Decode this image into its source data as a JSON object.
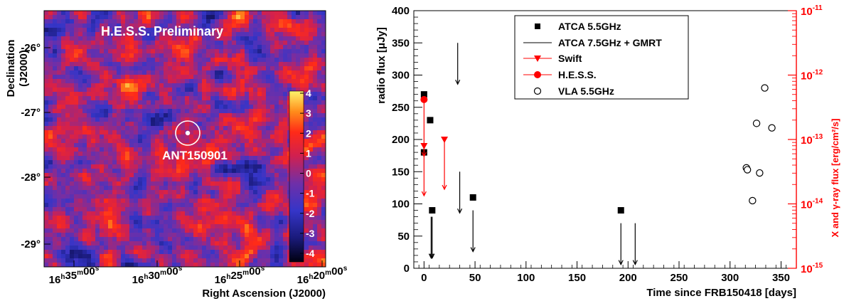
{
  "chart_data": [
    {
      "type": "heatmap",
      "title": "H.E.S.S. Preliminary",
      "xlabel": "Right Ascension (J2000)",
      "ylabel": "Declination",
      "ylabel_sub": "(J2000)",
      "x_ticks": [
        {
          "h": "16",
          "m": "35",
          "s": "00"
        },
        {
          "h": "16",
          "m": "30",
          "s": "00"
        },
        {
          "h": "16",
          "m": "25",
          "s": "00"
        },
        {
          "h": "16",
          "m": "20",
          "s": "00"
        }
      ],
      "y_ticks": [
        "-26°",
        "-27°",
        "-28°",
        "-29°"
      ],
      "colorbar": {
        "ticks": [
          "4",
          "3",
          "2",
          "1",
          "0",
          "-1",
          "-2",
          "-3",
          "-4"
        ],
        "range": [
          -4.5,
          4.2
        ],
        "colors": [
          "#000010",
          "#1a1a7a",
          "#3535c8",
          "#6f2fa8",
          "#d02050",
          "#ff2a18",
          "#ff8c1a",
          "#fff36b"
        ]
      },
      "source_label": "ANT150901"
    },
    {
      "type": "scatter",
      "xlabel": "Time since FRB150418 [days]",
      "ylabel": "radio flux [μJy]",
      "y2label": "X and γ-ray flux [erg/cm²/s]",
      "xlim": [
        -10,
        365
      ],
      "ylim": [
        0,
        400
      ],
      "y2lim_log10": [
        -15,
        -11
      ],
      "x_ticks": [
        0,
        50,
        100,
        150,
        200,
        250,
        300,
        350
      ],
      "y_ticks": [
        0,
        50,
        100,
        150,
        200,
        250,
        300,
        350,
        400
      ],
      "y2_ticks": [
        {
          "mant": "10",
          "exp": "-11",
          "log": -11
        },
        {
          "mant": "10",
          "exp": "-12",
          "log": -12
        },
        {
          "mant": "10",
          "exp": "-13",
          "log": -13
        },
        {
          "mant": "10",
          "exp": "-14",
          "log": -14
        },
        {
          "mant": "10",
          "exp": "-15",
          "log": -15
        }
      ],
      "colors": {
        "radio": "#000000",
        "highenergy": "#ff0000"
      },
      "series": [
        {
          "name": "ATCA 5.5GHz",
          "marker": "square",
          "points": [
            [
              0,
              270
            ],
            [
              0,
              180
            ],
            [
              6,
              230
            ],
            [
              8,
              90
            ],
            [
              48,
              110
            ],
            [
              193,
              90
            ]
          ]
        },
        {
          "name": "ATCA 7.5GHz + GMRT",
          "marker": "upper-limit",
          "points": [
            [
              7,
              80
            ],
            [
              8,
              80
            ],
            [
              33,
              350
            ],
            [
              35,
              150
            ],
            [
              48,
              90
            ],
            [
              193,
              70
            ],
            [
              207,
              70
            ]
          ]
        },
        {
          "name": "Swift",
          "marker": "triangle-down",
          "axis": "y2",
          "points": [
            [
              0,
              -13.1
            ],
            [
              20,
              -13
            ]
          ]
        },
        {
          "name": "H.E.S.S.",
          "marker": "circle-filled",
          "axis": "y2",
          "points": [
            [
              0,
              -12.38
            ]
          ]
        },
        {
          "name": "VLA 5.5GHz",
          "marker": "circle-open",
          "points": [
            [
              316,
              156
            ],
            [
              317,
              153
            ],
            [
              322,
              105
            ],
            [
              326,
              225
            ],
            [
              329,
              148
            ],
            [
              334,
              280
            ],
            [
              341,
              218
            ]
          ]
        }
      ]
    }
  ]
}
